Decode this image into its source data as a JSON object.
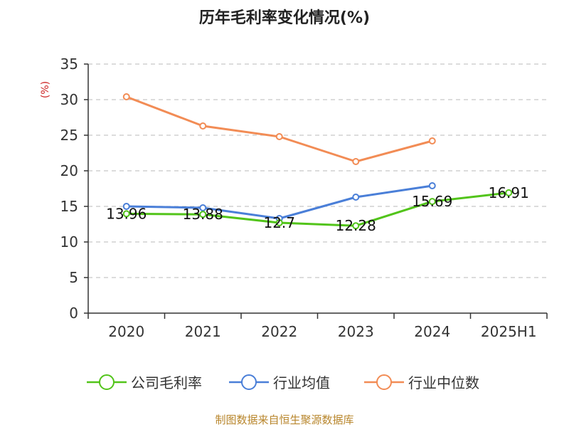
{
  "chart_data": {
    "type": "line",
    "title": "历年毛利率变化情况(%)",
    "ylabel": "(%)",
    "xlabel": "",
    "categories": [
      "2020",
      "2021",
      "2022",
      "2023",
      "2024",
      "2025H1"
    ],
    "y_ticks": [
      "0",
      "5",
      "10",
      "15",
      "20",
      "25",
      "30",
      "35"
    ],
    "ylim": [
      0,
      35
    ],
    "grid": true,
    "legend_position": "bottom",
    "series": [
      {
        "name": "公司毛利率",
        "color": "#52c41a",
        "values": [
          13.96,
          13.88,
          12.7,
          12.28,
          15.69,
          16.91
        ],
        "labels": [
          "13.96",
          "13.88",
          "12.7",
          "12.28",
          "15.69",
          "16.91"
        ]
      },
      {
        "name": "行业均值",
        "color": "#4a7fd8",
        "values": [
          15.0,
          14.8,
          13.3,
          16.3,
          17.9,
          null
        ]
      },
      {
        "name": "行业中位数",
        "color": "#f28c55",
        "values": [
          30.4,
          26.3,
          24.8,
          21.3,
          24.2,
          null
        ]
      }
    ]
  },
  "source": "制图数据来自恒生聚源数据库"
}
